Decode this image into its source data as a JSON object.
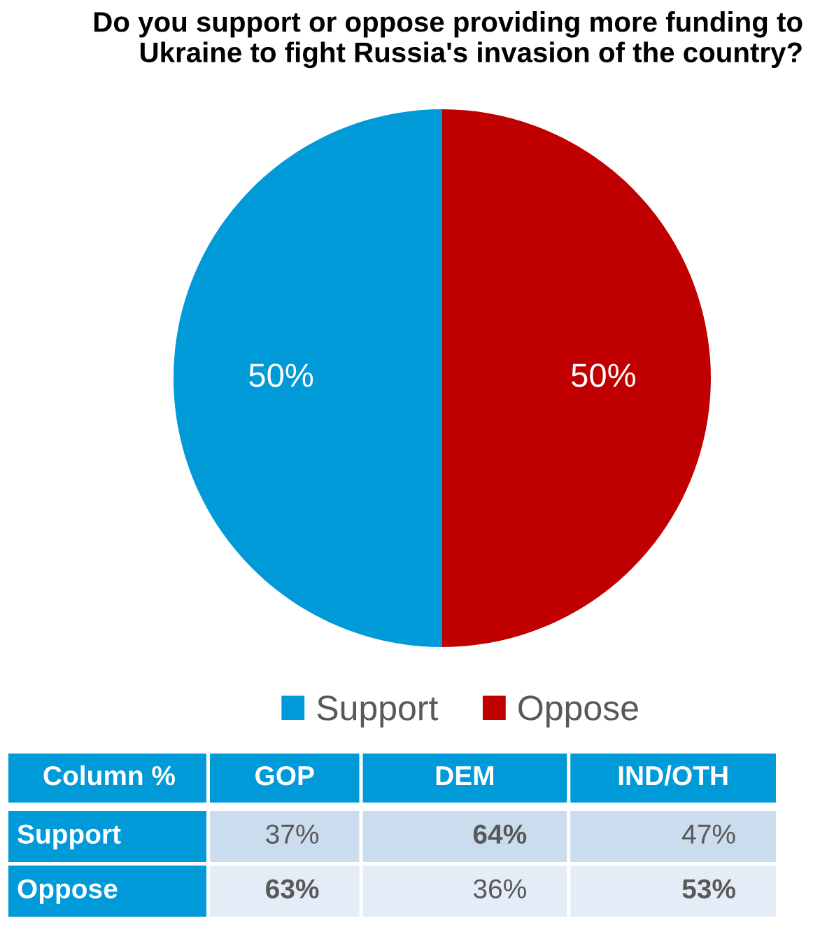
{
  "chart_data": [
    {
      "type": "pie",
      "title": "Do you support or oppose providing more funding to\nUkraine to fight Russia's invasion of the country?",
      "categories": [
        "Support",
        "Oppose"
      ],
      "values": [
        50,
        50
      ],
      "colors": [
        "#009ad8",
        "#c00000"
      ],
      "value_labels": [
        "50%",
        "50%"
      ],
      "legend": "bottom"
    },
    {
      "type": "heatmap",
      "title": "Column %",
      "categories": [
        "GOP",
        "DEM",
        "IND/OTH"
      ],
      "y_categories": [
        "Support",
        "Oppose"
      ],
      "cells": [
        [
          37,
          64,
          47
        ],
        [
          63,
          36,
          53
        ]
      ],
      "cell_labels": [
        [
          "37%",
          "64%",
          "47%"
        ],
        [
          "63%",
          "36%",
          "53%"
        ]
      ]
    }
  ]
}
